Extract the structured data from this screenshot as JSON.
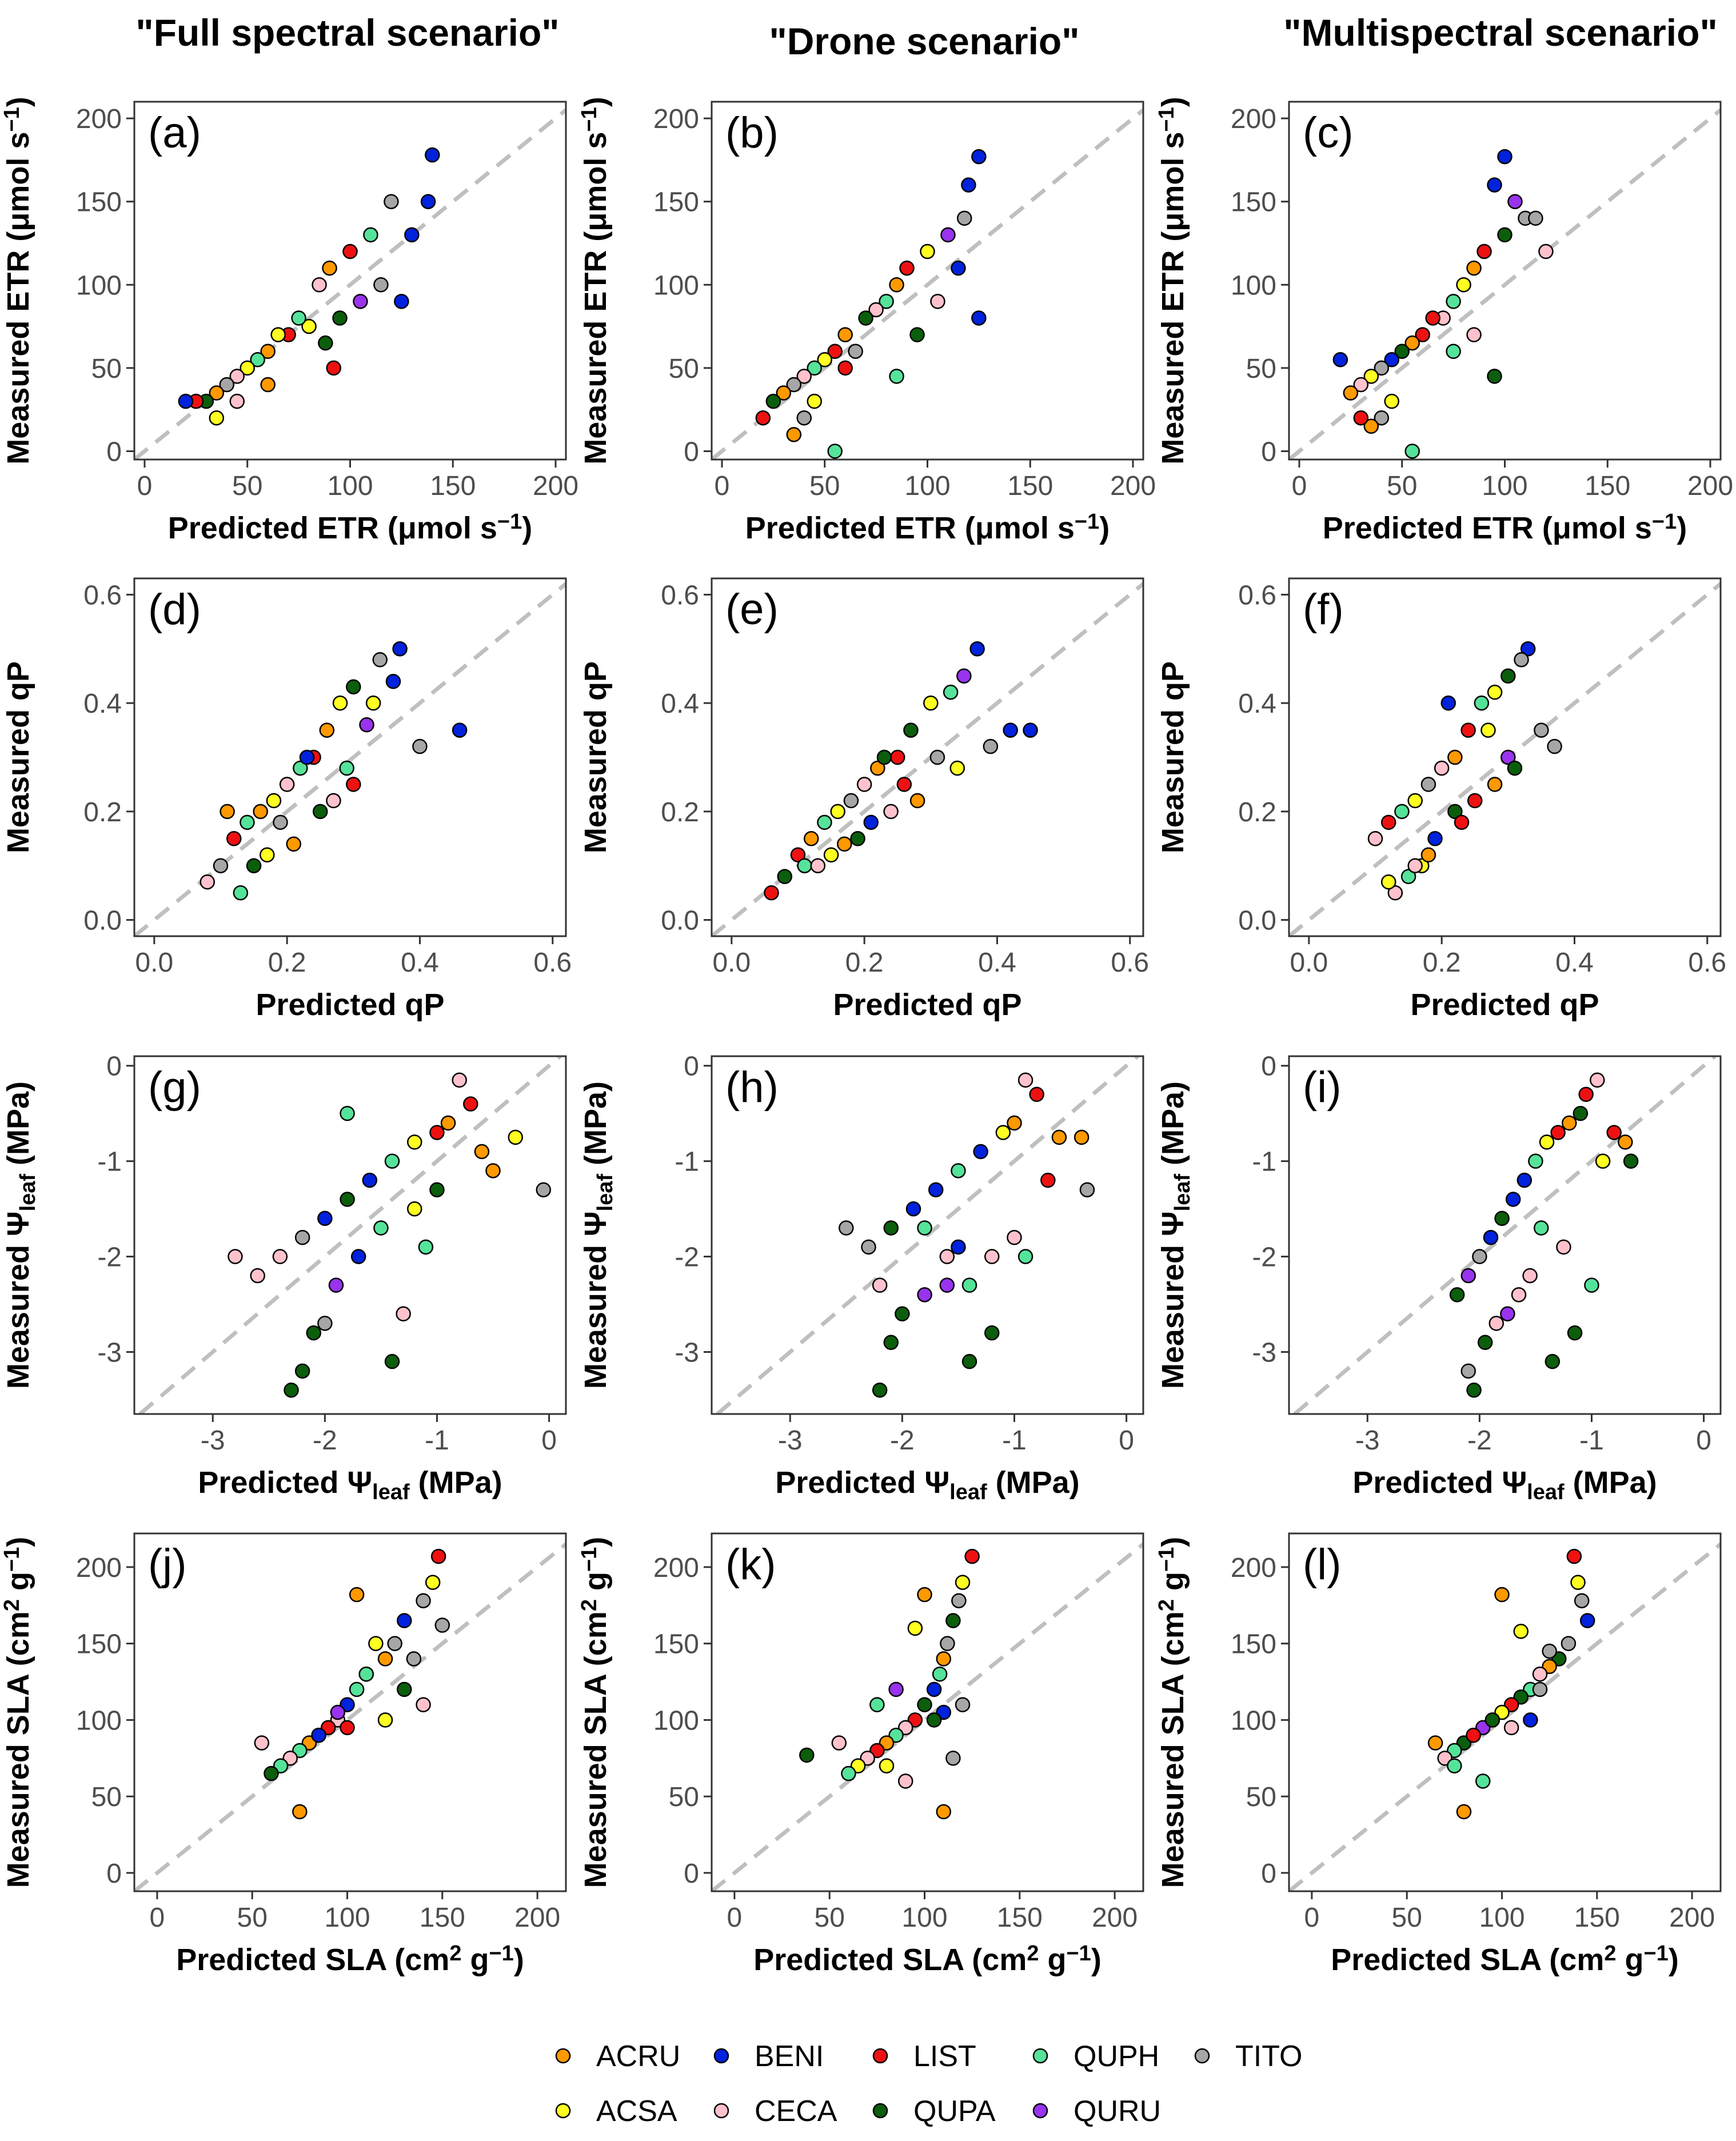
{
  "column_titles": [
    "\"Full spectral scenario\"",
    "\"Drone scenario\"",
    "\"Multispectral scenario\""
  ],
  "rows": [
    {
      "trait": "ETR",
      "xlabel": "Predicted ETR (μmol s⁻¹)",
      "ylabel": "Measured ETR (μmol s⁻¹)",
      "xlim": [
        -5,
        205
      ],
      "ylim": [
        -5,
        210
      ],
      "xticks": [
        0,
        50,
        100,
        150,
        200
      ],
      "yticks": [
        0,
        50,
        100,
        150,
        200
      ],
      "tick_labels": [
        "0",
        "50",
        "100",
        "150",
        "200"
      ]
    },
    {
      "trait": "qP",
      "xlabel": "Predicted qP",
      "ylabel": "Measured qP",
      "xlim": [
        -0.03,
        0.62
      ],
      "ylim": [
        -0.03,
        0.63
      ],
      "xticks": [
        0.0,
        0.2,
        0.4,
        0.6
      ],
      "yticks": [
        0.0,
        0.2,
        0.4,
        0.6
      ],
      "tick_labels": [
        "0.0",
        "0.2",
        "0.4",
        "0.6"
      ]
    },
    {
      "trait": "Ψleaf",
      "xlabel": "Predicted Ψleaf (MPa)",
      "ylabel": "Measured Ψleaf (MPa)",
      "xlim": [
        -3.7,
        0.15
      ],
      "ylim": [
        -3.65,
        0.1
      ],
      "xticks": [
        -3,
        -2,
        -1,
        0
      ],
      "yticks": [
        -3,
        -2,
        -1,
        0
      ],
      "tick_labels": [
        "-3",
        "-2",
        "-1",
        "0"
      ]
    },
    {
      "trait": "SLA",
      "xlabel": "Predicted SLA (cm² g⁻¹)",
      "ylabel": "Measured SLA (cm² g⁻¹)",
      "xlim": [
        -12,
        215
      ],
      "ylim": [
        -12,
        222
      ],
      "xticks": [
        0,
        50,
        100,
        150,
        200
      ],
      "yticks": [
        0,
        50,
        100,
        150,
        200
      ],
      "tick_labels": [
        "0",
        "50",
        "100",
        "150",
        "200"
      ]
    }
  ],
  "panel_labels": [
    "(a)",
    "(b)",
    "(c)",
    "(d)",
    "(e)",
    "(f)",
    "(g)",
    "(h)",
    "(i)",
    "(j)",
    "(k)",
    "(l)"
  ],
  "legend": [
    {
      "code": "ACRU",
      "color": "#FF9900"
    },
    {
      "code": "BENI",
      "color": "#0022DD"
    },
    {
      "code": "LIST",
      "color": "#EE1111"
    },
    {
      "code": "QUPH",
      "color": "#55E39A"
    },
    {
      "code": "TITO",
      "color": "#A6A6A6"
    },
    {
      "code": "ACSA",
      "color": "#FFFF22"
    },
    {
      "code": "CECA",
      "color": "#FFC2CC"
    },
    {
      "code": "QUPA",
      "color": "#0B5E0B"
    },
    {
      "code": "QURU",
      "color": "#9933EE"
    }
  ],
  "colors": {
    "identity_line": "#BFBFBF",
    "panel_border": "#333333",
    "point_outline": "#000000"
  },
  "chart_data": [
    {
      "panel": "(a)",
      "type": "scatter",
      "x": [
        140,
        130,
        138,
        120,
        110,
        100,
        90,
        85,
        95,
        80,
        70,
        60,
        55,
        50,
        45,
        40,
        35,
        30,
        25,
        20,
        65,
        75,
        105,
        115,
        125,
        88,
        92,
        60,
        45,
        35
      ],
      "y": [
        178,
        130,
        150,
        150,
        130,
        120,
        110,
        100,
        80,
        75,
        70,
        60,
        55,
        50,
        45,
        40,
        35,
        30,
        30,
        30,
        70,
        80,
        90,
        100,
        90,
        65,
        50,
        40,
        30,
        20
      ],
      "groups": [
        "BENI",
        "BENI",
        "BENI",
        "TITO",
        "QUPH",
        "LIST",
        "ACRU",
        "CECA",
        "QUPA",
        "ACSA",
        "LIST",
        "ACRU",
        "QUPH",
        "ACSA",
        "CECA",
        "TITO",
        "ACRU",
        "QUPA",
        "LIST",
        "BENI",
        "ACSA",
        "QUPH",
        "QURU",
        "TITO",
        "BENI",
        "QUPA",
        "LIST",
        "ACRU",
        "CECA",
        "ACSA"
      ]
    },
    {
      "panel": "(b)",
      "type": "scatter",
      "x": [
        125,
        120,
        118,
        110,
        100,
        90,
        85,
        80,
        75,
        70,
        60,
        55,
        50,
        45,
        40,
        35,
        30,
        25,
        20,
        95,
        105,
        115,
        65,
        85,
        125,
        55,
        45,
        40,
        35,
        60
      ],
      "y": [
        177,
        160,
        140,
        130,
        120,
        110,
        100,
        90,
        85,
        80,
        70,
        60,
        55,
        50,
        45,
        40,
        35,
        30,
        20,
        70,
        90,
        110,
        60,
        45,
        80,
        0,
        30,
        20,
        10,
        50
      ],
      "groups": [
        "BENI",
        "BENI",
        "TITO",
        "QURU",
        "ACSA",
        "LIST",
        "ACRU",
        "QUPH",
        "CECA",
        "QUPA",
        "ACRU",
        "LIST",
        "ACSA",
        "QUPH",
        "CECA",
        "TITO",
        "ACRU",
        "QUPA",
        "LIST",
        "QUPA",
        "CECA",
        "BENI",
        "TITO",
        "QUPH",
        "BENI",
        "QUPH",
        "ACSA",
        "TITO",
        "ACRU",
        "LIST"
      ]
    },
    {
      "panel": "(c)",
      "type": "scatter",
      "x": [
        100,
        95,
        105,
        110,
        100,
        90,
        85,
        80,
        75,
        70,
        60,
        55,
        50,
        45,
        40,
        35,
        30,
        25,
        20,
        115,
        120,
        65,
        75,
        95,
        55,
        45,
        40,
        35,
        30,
        85
      ],
      "y": [
        177,
        160,
        150,
        140,
        130,
        120,
        110,
        100,
        90,
        80,
        70,
        65,
        60,
        55,
        50,
        45,
        40,
        35,
        55,
        140,
        120,
        80,
        60,
        45,
        0,
        30,
        20,
        15,
        20,
        70
      ],
      "groups": [
        "BENI",
        "BENI",
        "QURU",
        "TITO",
        "QUPA",
        "LIST",
        "ACRU",
        "ACSA",
        "QUPH",
        "CECA",
        "LIST",
        "ACRU",
        "QUPA",
        "BENI",
        "TITO",
        "ACSA",
        "CECA",
        "ACRU",
        "BENI",
        "TITO",
        "CECA",
        "LIST",
        "QUPH",
        "QUPA",
        "QUPH",
        "ACSA",
        "TITO",
        "ACRU",
        "LIST",
        "CECA"
      ]
    },
    {
      "panel": "(d)",
      "type": "scatter",
      "x": [
        0.37,
        0.34,
        0.3,
        0.28,
        0.26,
        0.24,
        0.22,
        0.2,
        0.18,
        0.16,
        0.14,
        0.12,
        0.1,
        0.08,
        0.32,
        0.36,
        0.4,
        0.46,
        0.25,
        0.21,
        0.17,
        0.13,
        0.3,
        0.27,
        0.19,
        0.15,
        0.11,
        0.23,
        0.29,
        0.33
      ],
      "y": [
        0.5,
        0.48,
        0.43,
        0.4,
        0.35,
        0.3,
        0.28,
        0.25,
        0.22,
        0.2,
        0.18,
        0.15,
        0.1,
        0.07,
        0.36,
        0.44,
        0.32,
        0.35,
        0.2,
        0.14,
        0.12,
        0.05,
        0.25,
        0.22,
        0.18,
        0.1,
        0.2,
        0.3,
        0.28,
        0.4
      ],
      "groups": [
        "BENI",
        "TITO",
        "QUPA",
        "ACSA",
        "ACRU",
        "LIST",
        "QUPH",
        "CECA",
        "ACSA",
        "ACRU",
        "QUPH",
        "LIST",
        "TITO",
        "CECA",
        "QURU",
        "BENI",
        "TITO",
        "BENI",
        "QUPA",
        "ACRU",
        "ACSA",
        "QUPH",
        "LIST",
        "CECA",
        "TITO",
        "QUPA",
        "ACRU",
        "BENI",
        "QUPH",
        "ACSA"
      ]
    },
    {
      "panel": "(e)",
      "type": "scatter",
      "x": [
        0.37,
        0.35,
        0.33,
        0.3,
        0.27,
        0.25,
        0.22,
        0.2,
        0.18,
        0.16,
        0.14,
        0.12,
        0.1,
        0.08,
        0.06,
        0.39,
        0.42,
        0.45,
        0.28,
        0.24,
        0.19,
        0.15,
        0.11,
        0.31,
        0.26,
        0.21,
        0.17,
        0.13,
        0.23,
        0.34
      ],
      "y": [
        0.5,
        0.45,
        0.42,
        0.4,
        0.35,
        0.3,
        0.28,
        0.25,
        0.22,
        0.2,
        0.18,
        0.15,
        0.12,
        0.08,
        0.05,
        0.32,
        0.35,
        0.35,
        0.22,
        0.2,
        0.15,
        0.12,
        0.1,
        0.3,
        0.25,
        0.18,
        0.14,
        0.1,
        0.3,
        0.28
      ],
      "groups": [
        "BENI",
        "QURU",
        "QUPH",
        "ACSA",
        "QUPA",
        "LIST",
        "ACRU",
        "CECA",
        "TITO",
        "ACSA",
        "QUPH",
        "ACRU",
        "LIST",
        "QUPA",
        "LIST",
        "TITO",
        "BENI",
        "BENI",
        "ACRU",
        "CECA",
        "QUPA",
        "ACSA",
        "QUPH",
        "TITO",
        "LIST",
        "BENI",
        "ACRU",
        "CECA",
        "QUPA",
        "ACSA"
      ]
    },
    {
      "panel": "(f)",
      "type": "scatter",
      "x": [
        0.33,
        0.32,
        0.3,
        0.28,
        0.26,
        0.24,
        0.22,
        0.2,
        0.18,
        0.16,
        0.14,
        0.12,
        0.1,
        0.3,
        0.35,
        0.37,
        0.28,
        0.25,
        0.22,
        0.19,
        0.17,
        0.15,
        0.13,
        0.21,
        0.27,
        0.31,
        0.23,
        0.18,
        0.16,
        0.12
      ],
      "y": [
        0.5,
        0.48,
        0.45,
        0.42,
        0.4,
        0.35,
        0.3,
        0.28,
        0.25,
        0.22,
        0.2,
        0.18,
        0.15,
        0.3,
        0.35,
        0.32,
        0.25,
        0.22,
        0.2,
        0.15,
        0.1,
        0.08,
        0.05,
        0.4,
        0.35,
        0.28,
        0.18,
        0.12,
        0.1,
        0.07
      ],
      "groups": [
        "BENI",
        "TITO",
        "QUPA",
        "ACSA",
        "QUPH",
        "LIST",
        "ACRU",
        "CECA",
        "TITO",
        "ACSA",
        "QUPH",
        "LIST",
        "CECA",
        "QURU",
        "TITO",
        "TITO",
        "ACRU",
        "LIST",
        "QUPA",
        "BENI",
        "ACSA",
        "QUPH",
        "CECA",
        "BENI",
        "ACSA",
        "QUPA",
        "LIST",
        "ACRU",
        "CECA",
        "ACSA"
      ]
    },
    {
      "panel": "(g)",
      "type": "scatter",
      "x": [
        -0.8,
        -0.7,
        -0.9,
        -1.0,
        -1.2,
        -1.4,
        -1.6,
        -1.8,
        -2.0,
        -2.2,
        -2.4,
        -2.6,
        -2.8,
        -0.3,
        -0.5,
        -0.05,
        -1.3,
        -1.5,
        -1.9,
        -2.1,
        -2.3,
        -1.1,
        -1.7,
        -2.2,
        -1.8,
        -1.4,
        -1.0,
        -0.6,
        -1.2,
        -2.0
      ],
      "y": [
        -0.15,
        -0.4,
        -0.6,
        -0.7,
        -0.8,
        -1.0,
        -1.2,
        -1.4,
        -1.6,
        -1.8,
        -2.0,
        -2.2,
        -2.0,
        -0.75,
        -1.1,
        -1.3,
        -2.6,
        -1.7,
        -2.3,
        -2.8,
        -3.4,
        -1.9,
        -2.0,
        -3.2,
        -0.5,
        -3.1,
        -1.3,
        -0.9,
        -1.5,
        -2.7
      ],
      "groups": [
        "CECA",
        "LIST",
        "ACRU",
        "LIST",
        "ACSA",
        "QUPH",
        "BENI",
        "QUPA",
        "BENI",
        "TITO",
        "CECA",
        "CECA",
        "CECA",
        "ACSA",
        "ACRU",
        "TITO",
        "CECA",
        "QUPH",
        "QURU",
        "QUPA",
        "QUPA",
        "QUPH",
        "BENI",
        "QUPA",
        "QUPH",
        "QUPA",
        "QUPA",
        "ACRU",
        "ACSA",
        "TITO"
      ]
    },
    {
      "panel": "(h)",
      "type": "scatter",
      "x": [
        -0.9,
        -0.8,
        -1.0,
        -1.1,
        -1.3,
        -1.5,
        -1.7,
        -1.9,
        -2.1,
        -2.3,
        -2.5,
        -0.6,
        -0.4,
        -0.35,
        -1.2,
        -1.4,
        -1.6,
        -1.8,
        -2.0,
        -2.2,
        -1.0,
        -1.4,
        -1.8,
        -2.1,
        -1.2,
        -0.9,
        -1.6,
        -2.2,
        -1.5,
        -0.7
      ],
      "y": [
        -0.15,
        -0.3,
        -0.6,
        -0.7,
        -0.9,
        -1.1,
        -1.3,
        -1.5,
        -1.7,
        -1.9,
        -1.7,
        -0.75,
        -0.75,
        -1.3,
        -2.8,
        -2.3,
        -2.0,
        -2.4,
        -2.6,
        -3.4,
        -1.8,
        -3.1,
        -1.7,
        -2.9,
        -2.0,
        -2.0,
        -2.3,
        -2.3,
        -1.9,
        -1.2
      ],
      "groups": [
        "CECA",
        "LIST",
        "ACRU",
        "ACSA",
        "BENI",
        "QUPH",
        "BENI",
        "BENI",
        "QUPA",
        "TITO",
        "TITO",
        "ACRU",
        "ACRU",
        "TITO",
        "QUPA",
        "QUPH",
        "CECA",
        "QURU",
        "QUPA",
        "QUPA",
        "CECA",
        "QUPA",
        "QUPH",
        "QUPA",
        "CECA",
        "QUPH",
        "QURU",
        "CECA",
        "BENI",
        "LIST"
      ]
    },
    {
      "panel": "(i)",
      "type": "scatter",
      "x": [
        -0.95,
        -1.05,
        -1.1,
        -1.2,
        -1.3,
        -1.4,
        -1.5,
        -1.6,
        -1.7,
        -1.8,
        -1.9,
        -2.0,
        -2.1,
        -2.2,
        -0.8,
        -0.7,
        -0.65,
        -1.0,
        -1.15,
        -1.35,
        -1.55,
        -1.75,
        -1.95,
        -2.1,
        -1.25,
        -0.9,
        -1.45,
        -1.85,
        -2.05,
        -1.65
      ],
      "y": [
        -0.15,
        -0.3,
        -0.5,
        -0.6,
        -0.7,
        -0.8,
        -1.0,
        -1.2,
        -1.4,
        -1.6,
        -1.8,
        -2.0,
        -2.2,
        -2.4,
        -0.7,
        -0.8,
        -1.0,
        -2.3,
        -2.8,
        -3.1,
        -2.2,
        -2.6,
        -2.9,
        -3.2,
        -1.9,
        -1.0,
        -1.7,
        -2.7,
        -3.4,
        -2.4
      ],
      "groups": [
        "CECA",
        "LIST",
        "QUPA",
        "ACRU",
        "LIST",
        "ACSA",
        "QUPH",
        "BENI",
        "BENI",
        "QUPA",
        "BENI",
        "TITO",
        "QURU",
        "QUPA",
        "LIST",
        "ACRU",
        "QUPA",
        "QUPH",
        "QUPA",
        "QUPA",
        "CECA",
        "QURU",
        "QUPA",
        "TITO",
        "CECA",
        "ACSA",
        "QUPH",
        "CECA",
        "QUPA",
        "CECA"
      ]
    },
    {
      "panel": "(j)",
      "type": "scatter",
      "x": [
        148,
        145,
        140,
        130,
        125,
        120,
        110,
        105,
        100,
        95,
        90,
        85,
        80,
        75,
        70,
        65,
        60,
        55,
        115,
        135,
        150,
        105,
        95,
        85,
        75,
        120,
        130,
        140,
        100,
        110
      ],
      "y": [
        207,
        190,
        178,
        165,
        150,
        140,
        130,
        120,
        110,
        100,
        95,
        90,
        85,
        80,
        75,
        70,
        65,
        85,
        150,
        140,
        162,
        182,
        105,
        90,
        40,
        100,
        120,
        110,
        95,
        130
      ],
      "groups": [
        "LIST",
        "ACSA",
        "TITO",
        "BENI",
        "TITO",
        "ACRU",
        "QUPA",
        "QUPH",
        "BENI",
        "CECA",
        "LIST",
        "QUPA",
        "ACRU",
        "QUPH",
        "CECA",
        "QUPH",
        "QUPA",
        "CECA",
        "ACSA",
        "TITO",
        "TITO",
        "ACRU",
        "QURU",
        "BENI",
        "ACRU",
        "ACSA",
        "QUPA",
        "CECA",
        "LIST",
        "QUPH"
      ]
    },
    {
      "panel": "(k)",
      "type": "scatter",
      "x": [
        125,
        120,
        118,
        115,
        112,
        110,
        108,
        105,
        100,
        95,
        90,
        85,
        80,
        75,
        70,
        65,
        60,
        55,
        38,
        100,
        110,
        120,
        95,
        85,
        75,
        105,
        115,
        90,
        80,
        110
      ],
      "y": [
        207,
        190,
        178,
        165,
        150,
        140,
        130,
        120,
        110,
        100,
        95,
        90,
        85,
        80,
        75,
        70,
        65,
        85,
        77,
        182,
        105,
        110,
        160,
        120,
        110,
        100,
        75,
        60,
        70,
        40
      ],
      "groups": [
        "LIST",
        "ACSA",
        "TITO",
        "QUPA",
        "TITO",
        "ACRU",
        "QUPH",
        "BENI",
        "QUPA",
        "LIST",
        "CECA",
        "QUPH",
        "ACRU",
        "LIST",
        "CECA",
        "ACSA",
        "QUPH",
        "CECA",
        "QUPA",
        "ACRU",
        "BENI",
        "TITO",
        "ACSA",
        "QURU",
        "QUPH",
        "QUPA",
        "TITO",
        "CECA",
        "ACSA",
        "ACRU"
      ]
    },
    {
      "panel": "(l)",
      "type": "scatter",
      "x": [
        138,
        140,
        142,
        145,
        135,
        130,
        125,
        120,
        115,
        110,
        105,
        100,
        95,
        90,
        85,
        80,
        75,
        70,
        65,
        100,
        110,
        120,
        95,
        85,
        90,
        125,
        115,
        105,
        80,
        75
      ],
      "y": [
        207,
        190,
        178,
        165,
        150,
        140,
        135,
        130,
        120,
        115,
        110,
        105,
        100,
        95,
        90,
        85,
        80,
        75,
        85,
        182,
        158,
        120,
        100,
        90,
        60,
        145,
        100,
        95,
        40,
        70
      ],
      "groups": [
        "LIST",
        "ACSA",
        "TITO",
        "BENI",
        "TITO",
        "QUPA",
        "ACRU",
        "CECA",
        "QUPH",
        "QUPA",
        "LIST",
        "ACSA",
        "BENI",
        "QURU",
        "LIST",
        "QUPA",
        "QUPH",
        "CECA",
        "ACRU",
        "ACRU",
        "ACSA",
        "TITO",
        "QUPA",
        "LIST",
        "QUPH",
        "TITO",
        "BENI",
        "CECA",
        "ACRU",
        "QUPH"
      ]
    }
  ]
}
